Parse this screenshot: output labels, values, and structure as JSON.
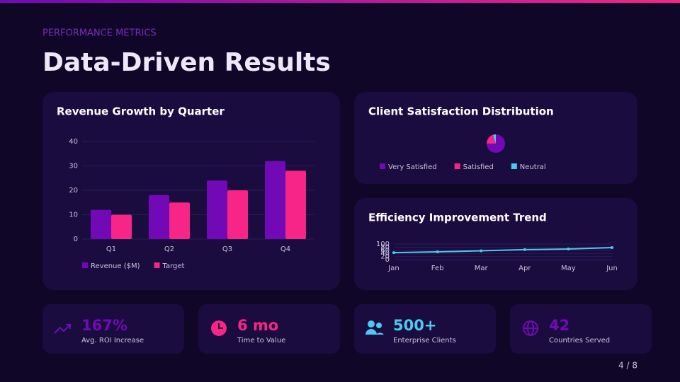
{
  "header": {
    "eyebrow": "PERFORMANCE METRICS",
    "title": "Data-Driven Results"
  },
  "chart_data": [
    {
      "type": "bar",
      "title": "Revenue Growth by Quarter",
      "categories": [
        "Q1",
        "Q2",
        "Q3",
        "Q4"
      ],
      "series": [
        {
          "name": "Revenue ($M)",
          "color": "#7209b7",
          "values": [
            12,
            18,
            24,
            32
          ]
        },
        {
          "name": "Target",
          "color": "#f72585",
          "values": [
            10,
            15,
            20,
            28
          ]
        }
      ],
      "ylim": [
        0,
        40
      ],
      "yticks": [
        0,
        10,
        20,
        30,
        40
      ],
      "grid": true
    },
    {
      "type": "pie",
      "title": "Client Satisfaction Distribution",
      "categories": [
        "Very Satisfied",
        "Satisfied",
        "Neutral"
      ],
      "values": [
        75,
        20,
        5
      ],
      "colors": [
        "#7209b7",
        "#f72585",
        "#4cc9f0"
      ]
    },
    {
      "type": "line",
      "title": "Efficiency Improvement Trend",
      "categories": [
        "Jan",
        "Feb",
        "Mar",
        "Apr",
        "May",
        "Jun"
      ],
      "values": [
        45,
        50,
        57,
        64,
        68,
        77
      ],
      "color": "#4cc9f0",
      "ylim": [
        0,
        100
      ],
      "yticks": [
        0,
        20,
        40,
        60,
        80,
        100
      ],
      "grid": true
    }
  ],
  "stats": [
    {
      "value": "167%",
      "label": "Avg. ROI Increase"
    },
    {
      "value": "6 mo",
      "label": "Time to Value"
    },
    {
      "value": "500+",
      "label": "Enterprise Clients"
    },
    {
      "value": "42",
      "label": "Countries Served"
    }
  ],
  "page": "4 / 8"
}
